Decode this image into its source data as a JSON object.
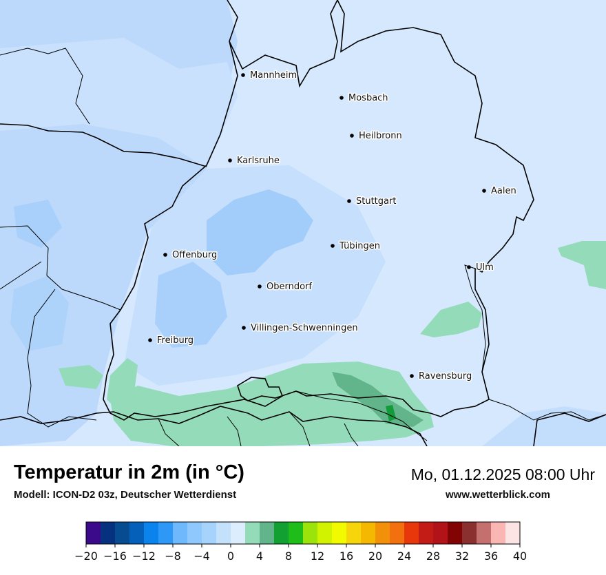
{
  "map": {
    "cities": [
      {
        "name": "Mannheim"
      },
      {
        "name": "Mosbach"
      },
      {
        "name": "Heilbronn"
      },
      {
        "name": "Karlsruhe"
      },
      {
        "name": "Aalen"
      },
      {
        "name": "Stuttgart"
      },
      {
        "name": "Tübingen"
      },
      {
        "name": "Offenburg"
      },
      {
        "name": "Ulm"
      },
      {
        "name": "Oberndorf"
      },
      {
        "name": "Villingen-Schwenningen"
      },
      {
        "name": "Freiburg"
      },
      {
        "name": "Ravensburg"
      }
    ],
    "colors": {
      "base": "#d5e8fd",
      "cool": "#bcd9fb",
      "cooler": "#a2cdfa",
      "mild": "#93dbb9",
      "mild_dark": "#62b48a",
      "warm": "#139b3a",
      "border": "#000000"
    }
  },
  "footer": {
    "title": "Temperatur in 2m (in °C)",
    "model": "Modell: ICON-D2 03z, Deutscher Wetterdienst",
    "datetime": "Mo, 01.12.2025 08:00 Uhr",
    "website": "www.wetterblick.com"
  },
  "legend": {
    "min": -20,
    "max": 40,
    "step": 2,
    "ticks": [
      "−20",
      "−16",
      "−12",
      "−8",
      "−4",
      "0",
      "4",
      "8",
      "12",
      "16",
      "20",
      "24",
      "28",
      "32",
      "36",
      "40"
    ],
    "colors": [
      "#3b0a8a",
      "#05317e",
      "#074b91",
      "#0460b9",
      "#0b83ec",
      "#2e98f7",
      "#6fb8fb",
      "#8fc8fc",
      "#a6d3fb",
      "#c4e1fc",
      "#dceefe",
      "#94dcb9",
      "#62b48a",
      "#12a033",
      "#1fbd19",
      "#9be30b",
      "#d2f300",
      "#f2fa00",
      "#f6d50c",
      "#f4b803",
      "#f2900a",
      "#f2700e",
      "#e7370b",
      "#c31b15",
      "#b11318",
      "#820303",
      "#8a3130",
      "#c4706f",
      "#fab6b3",
      "#fde4e4"
    ]
  }
}
